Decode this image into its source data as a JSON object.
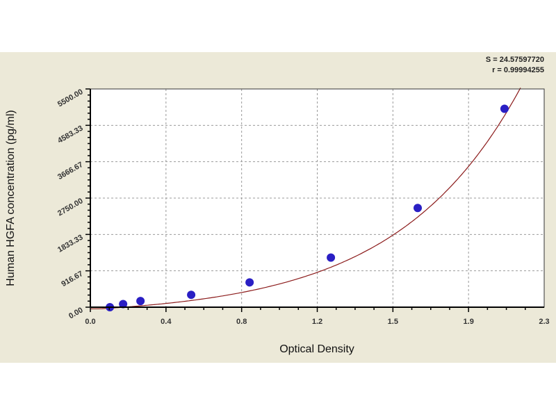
{
  "chart_data": {
    "type": "scatter",
    "title": "",
    "xlabel": "Optical Density",
    "ylabel": "Human HGFA concentration (pg/ml)",
    "xlim": [
      0,
      2.3
    ],
    "ylim": [
      0,
      5500
    ],
    "x_ticks": [
      "0.0",
      "0.4",
      "0.8",
      "1.2",
      "1.5",
      "1.9",
      "2.3"
    ],
    "y_ticks": [
      "0.00",
      "916.67",
      "1833.33",
      "2750.00",
      "3666.67",
      "4583.33",
      "5500.00"
    ],
    "grid": true,
    "stats": [
      "S = 24.57597720",
      "r = 0.99994255"
    ],
    "points": {
      "x": [
        0.099,
        0.166,
        0.254,
        0.511,
        0.807,
        1.219,
        1.659,
        2.099
      ],
      "y": [
        0,
        78,
        156,
        312,
        625,
        1250,
        2500,
        5000
      ]
    },
    "fit_curve": true,
    "colors": {
      "points": "#2a1fc4",
      "curve": "#8b1a1a",
      "plot_bg": "#ffffff",
      "panel_bg": "#ece9d8",
      "grid": "#999999"
    }
  }
}
